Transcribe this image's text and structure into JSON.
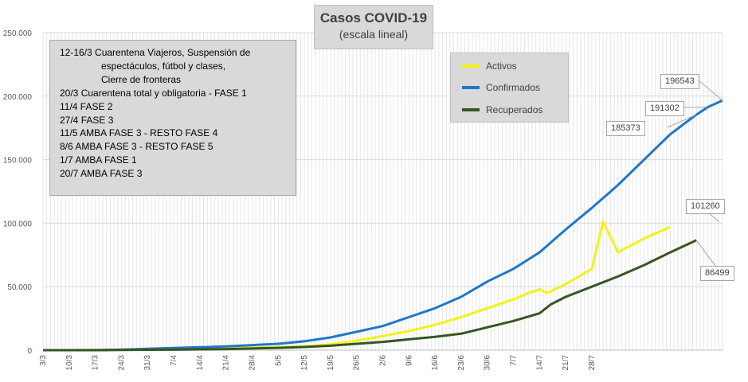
{
  "chart_data": {
    "type": "line",
    "title": "Casos  COVID-19",
    "subtitle": "(escala lineal)",
    "ylim": [
      0,
      250000
    ],
    "y_tick_labels": [
      "0",
      "50.000",
      "100.000",
      "150.000",
      "200.000",
      "250.000"
    ],
    "y_tick_values": [
      0,
      50000,
      100000,
      150000,
      200000,
      250000
    ],
    "x_start": "3/3",
    "x_count": 151,
    "x_tick_labels": [
      "3/3",
      "10/3",
      "17/3",
      "24/3",
      "31/3",
      "7/4",
      "14/4",
      "21/4",
      "28/4",
      "5/5",
      "12/5",
      "19/5",
      "26/5",
      "2/6",
      "9/6",
      "16/6",
      "23/6",
      "30/6",
      "7/7",
      "14/7",
      "21/7",
      "28/7"
    ],
    "grid": true,
    "legend_position": "top-right",
    "series": [
      {
        "name": "Activos",
        "color": "#f2f21a",
        "points": [
          [
            0,
            1
          ],
          [
            7,
            20
          ],
          [
            14,
            60
          ],
          [
            21,
            300
          ],
          [
            28,
            800
          ],
          [
            35,
            1200
          ],
          [
            42,
            1500
          ],
          [
            49,
            1800
          ],
          [
            56,
            2000
          ],
          [
            63,
            2300
          ],
          [
            70,
            3000
          ],
          [
            77,
            4500
          ],
          [
            84,
            7500
          ],
          [
            91,
            11000
          ],
          [
            98,
            15000
          ],
          [
            105,
            20000
          ],
          [
            112,
            26000
          ],
          [
            119,
            33000
          ],
          [
            126,
            40000
          ],
          [
            130,
            45000
          ],
          [
            133,
            48000
          ],
          [
            135,
            45000
          ],
          [
            140,
            52000
          ],
          [
            147,
            64000
          ],
          [
            154,
            77000
          ],
          [
            161,
            88000
          ],
          [
            168,
            97000
          ],
          [
            150,
            101260
          ]
        ]
      },
      {
        "name": "Confirmados",
        "color": "#1f77c8",
        "points": [
          [
            0,
            1
          ],
          [
            7,
            30
          ],
          [
            14,
            80
          ],
          [
            21,
            400
          ],
          [
            28,
            1100
          ],
          [
            35,
            1700
          ],
          [
            42,
            2300
          ],
          [
            49,
            3000
          ],
          [
            56,
            4000
          ],
          [
            63,
            5000
          ],
          [
            70,
            7000
          ],
          [
            77,
            10000
          ],
          [
            84,
            14500
          ],
          [
            91,
            19000
          ],
          [
            98,
            26000
          ],
          [
            105,
            33000
          ],
          [
            112,
            42000
          ],
          [
            119,
            54000
          ],
          [
            126,
            64000
          ],
          [
            133,
            77000
          ],
          [
            140,
            95000
          ],
          [
            147,
            112000
          ],
          [
            154,
            130000
          ],
          [
            161,
            150000
          ],
          [
            168,
            170000
          ],
          [
            175,
            185373
          ],
          [
            178,
            191302
          ],
          [
            182,
            196543
          ]
        ]
      },
      {
        "name": "Recuperados",
        "color": "#375623",
        "points": [
          [
            0,
            0
          ],
          [
            7,
            0
          ],
          [
            14,
            20
          ],
          [
            21,
            100
          ],
          [
            28,
            300
          ],
          [
            35,
            400
          ],
          [
            42,
            600
          ],
          [
            49,
            900
          ],
          [
            56,
            1300
          ],
          [
            63,
            1800
          ],
          [
            70,
            2500
          ],
          [
            77,
            3500
          ],
          [
            84,
            5000
          ],
          [
            91,
            6500
          ],
          [
            98,
            8500
          ],
          [
            105,
            10500
          ],
          [
            112,
            13000
          ],
          [
            119,
            18000
          ],
          [
            126,
            23000
          ],
          [
            133,
            29000
          ],
          [
            136,
            36000
          ],
          [
            140,
            42000
          ],
          [
            147,
            50000
          ],
          [
            154,
            58000
          ],
          [
            161,
            67000
          ],
          [
            168,
            77000
          ],
          [
            175,
            86499
          ]
        ]
      }
    ],
    "callouts": [
      {
        "label": "196543",
        "series": "Confirmados"
      },
      {
        "label": "191302",
        "series": "Confirmados"
      },
      {
        "label": "185373",
        "series": "Confirmados"
      },
      {
        "label": "101260",
        "series": "Activos"
      },
      {
        "label": "86499",
        "series": "Recuperados"
      }
    ]
  },
  "annotations": [
    "12-16/3  Cuarentena Viajeros, Suspensión de",
    "espectáculos, fútbol y clases,",
    "Cierre de fronteras",
    "20/3  Cuarentena total y obligatoria - FASE 1",
    "11/4  FASE 2",
    "27/4  FASE 3",
    "11/5  AMBA FASE 3 - RESTO FASE 4",
    "8/6  AMBA FASE 3 - RESTO FASE 5",
    "1/7  AMBA FASE 1",
    "20/7  AMBA FASE 3"
  ],
  "legend": [
    {
      "label": "Activos",
      "color": "#f2f21a"
    },
    {
      "label": "Confirmados",
      "color": "#1f77c8"
    },
    {
      "label": "Recuperados",
      "color": "#375623"
    }
  ]
}
